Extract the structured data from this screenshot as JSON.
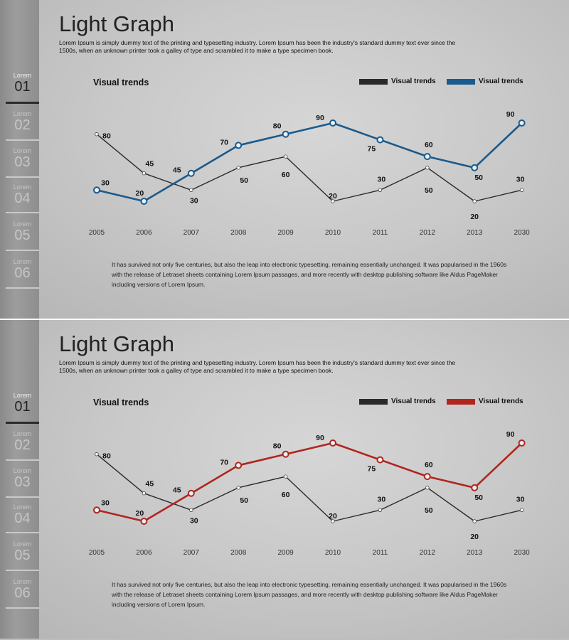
{
  "slides": [
    {
      "title": "Light Graph",
      "intro": "Lorem Ipsum is simply dummy text of the printing and typesetting industry. Lorem Ipsum has been the industry's standard dummy text ever since the 1500s, when an unknown printer took a galley of type and scrambled it to make a type specimen book.",
      "footer": "It has survived not only five centuries, but also the leap into electronic typesetting, remaining essentially unchanged. It was popularised in the 1960s with the release of Letraset sheets containing Lorem Ipsum passages, and more recently with desktop publishing software like Aldus PageMaker including versions of Lorem Ipsum.",
      "sidebar": {
        "label": "Lorem",
        "items": [
          {
            "label": "Lorem",
            "num": "01",
            "active": true
          },
          {
            "label": "Lorem",
            "num": "02",
            "active": false
          },
          {
            "label": "Lorem",
            "num": "03",
            "active": false
          },
          {
            "label": "Lorem",
            "num": "04",
            "active": false
          },
          {
            "label": "Lorem",
            "num": "05",
            "active": false
          },
          {
            "label": "Lorem",
            "num": "06",
            "active": false
          }
        ]
      },
      "accent_color": "#1b5a8c"
    },
    {
      "title": "Light Graph",
      "intro": "Lorem Ipsum is simply dummy text of the printing and typesetting industry. Lorem Ipsum has been the industry's standard dummy text ever since the 1500s, when an unknown printer took a galley of type and scrambled it to make a type specimen book.",
      "footer": "It has survived not only five centuries, but also the leap into electronic typesetting, remaining essentially unchanged. It was popularised in the 1960s with the release of Letraset sheets containing Lorem Ipsum passages, and more recently with desktop publishing software like Aldus PageMaker including versions of Lorem Ipsum.",
      "sidebar": {
        "label": "Lorem",
        "items": [
          {
            "label": "Lorem",
            "num": "01",
            "active": true
          },
          {
            "label": "Lorem",
            "num": "02",
            "active": false
          },
          {
            "label": "Lorem",
            "num": "03",
            "active": false
          },
          {
            "label": "Lorem",
            "num": "04",
            "active": false
          },
          {
            "label": "Lorem",
            "num": "05",
            "active": false
          },
          {
            "label": "Lorem",
            "num": "06",
            "active": false
          }
        ]
      },
      "accent_color": "#b0261e"
    }
  ],
  "chart_data": [
    {
      "type": "line",
      "title": "Visual trends",
      "categories": [
        "2005",
        "2006",
        "2007",
        "2008",
        "2009",
        "2010",
        "2011",
        "2012",
        "2013",
        "2030"
      ],
      "series": [
        {
          "name": "Visual trends",
          "color": "#2a2a2a",
          "values": [
            80,
            45,
            30,
            50,
            60,
            20,
            30,
            50,
            20,
            30
          ]
        },
        {
          "name": "Visual trends",
          "color": "#1b5a8c",
          "values": [
            30,
            20,
            45,
            70,
            80,
            90,
            75,
            60,
            50,
            90
          ]
        }
      ],
      "ylim": [
        20,
        90
      ],
      "grid": false,
      "legend": "top-right"
    },
    {
      "type": "line",
      "title": "Visual trends",
      "categories": [
        "2005",
        "2006",
        "2007",
        "2008",
        "2009",
        "2010",
        "2011",
        "2012",
        "2013",
        "2030"
      ],
      "series": [
        {
          "name": "Visual trends",
          "color": "#2a2a2a",
          "values": [
            80,
            45,
            30,
            50,
            60,
            20,
            30,
            50,
            20,
            30
          ]
        },
        {
          "name": "Visual trends",
          "color": "#b0261e",
          "values": [
            30,
            20,
            45,
            70,
            80,
            90,
            75,
            60,
            50,
            90
          ]
        }
      ],
      "ylim": [
        20,
        90
      ],
      "grid": false,
      "legend": "top-right"
    }
  ]
}
